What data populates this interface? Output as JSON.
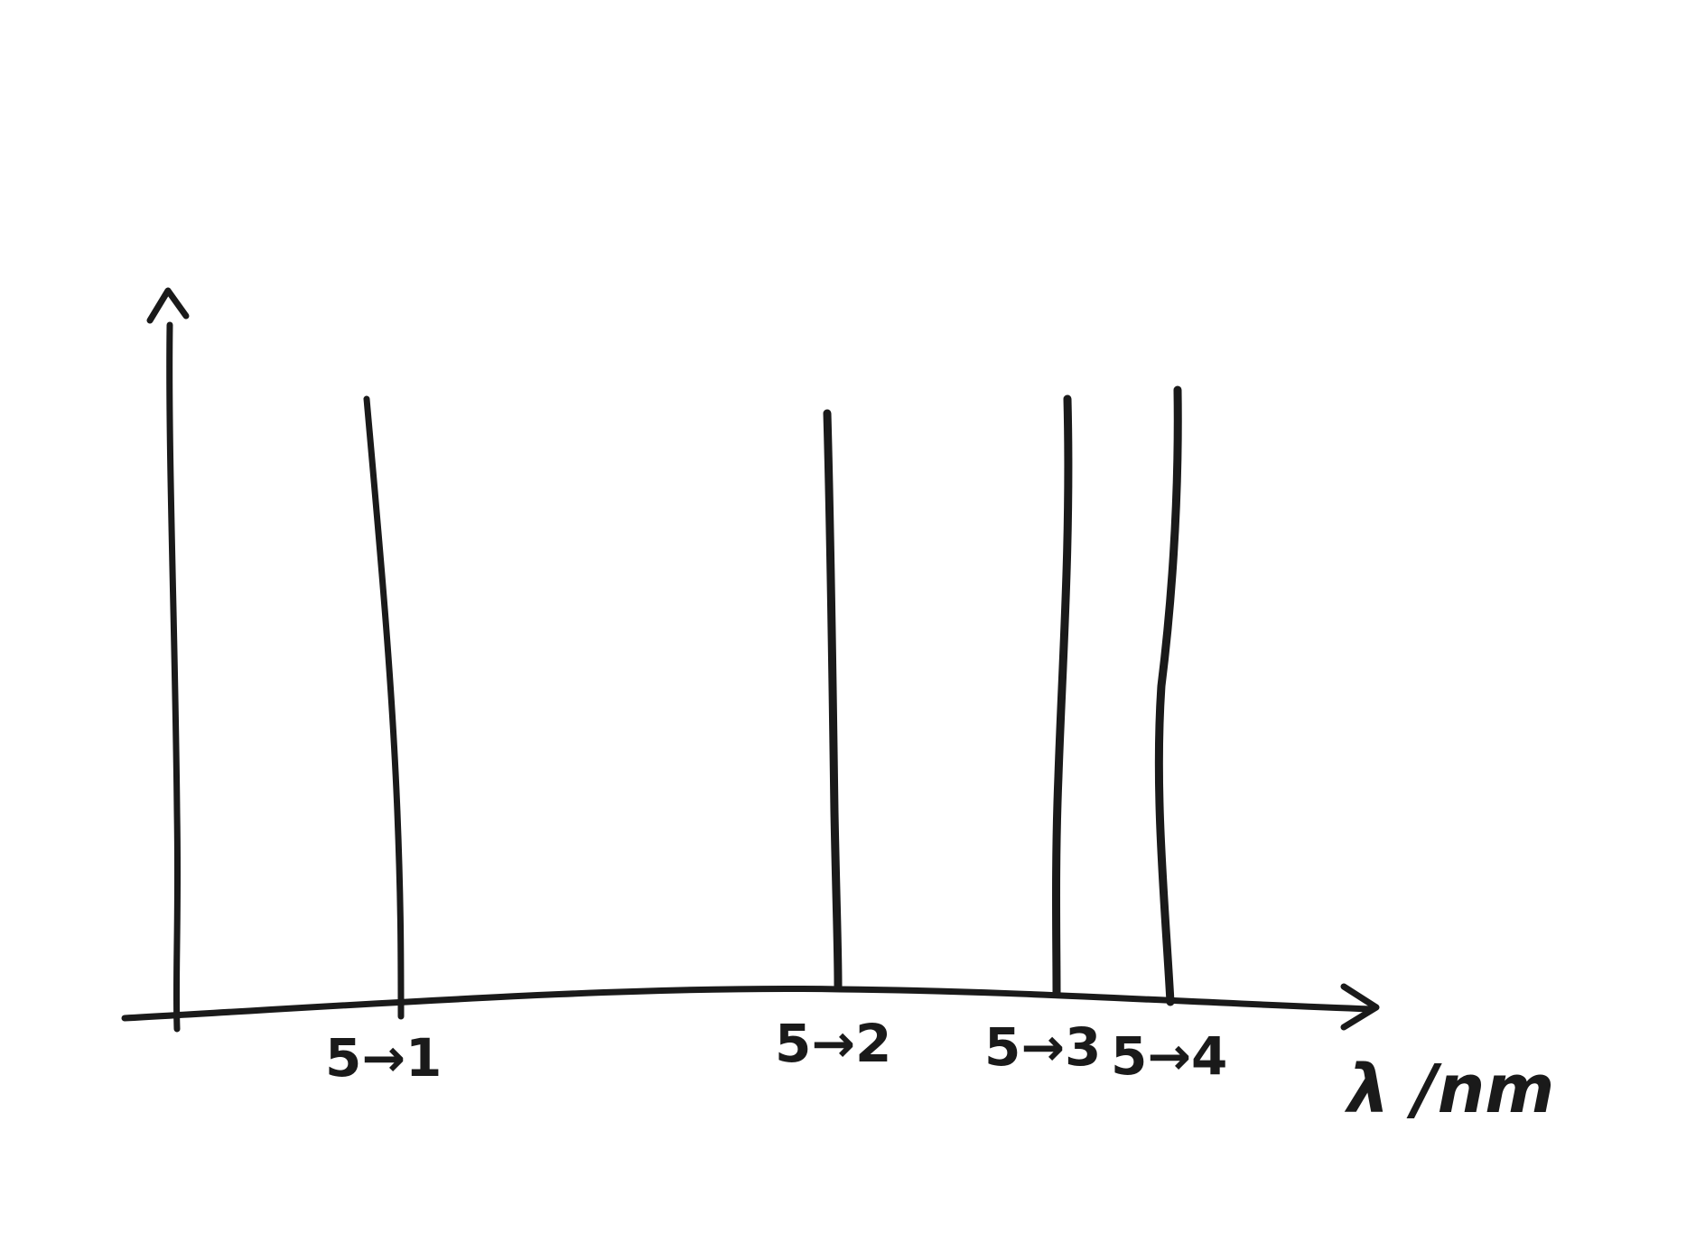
{
  "diagram": {
    "type": "line spectrum sketch",
    "x_axis": {
      "label": "λ /nm"
    },
    "lines": [
      {
        "label": "5→1",
        "order": 1
      },
      {
        "label": "5→2",
        "order": 2
      },
      {
        "label": "5→3",
        "order": 3
      },
      {
        "label": "5→4",
        "order": 4
      }
    ],
    "ink_color": "#1a1a1a",
    "background_color": "#ffffff"
  }
}
